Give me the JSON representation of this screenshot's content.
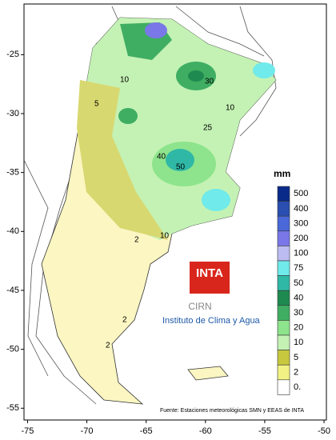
{
  "map": {
    "xticks": [
      -75,
      -70,
      -65,
      -60,
      -55,
      -50
    ],
    "yticks": [
      -25,
      -30,
      -35,
      -40,
      -45,
      -50,
      -55
    ],
    "xlim": [
      -75.3,
      -49.8
    ],
    "ylim": [
      -56,
      -20.7
    ],
    "legend": {
      "title": "mm",
      "items": [
        {
          "label": "500",
          "color": "#0a2a8a"
        },
        {
          "label": "400",
          "color": "#2a4fb0"
        },
        {
          "label": "300",
          "color": "#4a68d8"
        },
        {
          "label": "200",
          "color": "#7a78e8"
        },
        {
          "label": "100",
          "color": "#bcbcf2"
        },
        {
          "label": "75",
          "color": "#70eaea"
        },
        {
          "label": "50",
          "color": "#2fb8a6"
        },
        {
          "label": "40",
          "color": "#1f8a50"
        },
        {
          "label": "30",
          "color": "#3fae62"
        },
        {
          "label": "20",
          "color": "#8ee48c"
        },
        {
          "label": "10",
          "color": "#c4f2b4"
        },
        {
          "label": "5",
          "color": "#c8c83e"
        },
        {
          "label": "2",
          "color": "#f2f284"
        },
        {
          "label": "0.",
          "color": "#ffffff"
        }
      ]
    },
    "contour_labels": [
      "10",
      "30",
      "10",
      "5",
      "40",
      "50",
      "25",
      "2",
      "10",
      "2",
      "2"
    ],
    "logo": {
      "name": "INTA",
      "unit": "CIRN",
      "institute": "Instituto de Clima y Agua"
    },
    "source": "Fuente: Estaciones meteorológicas SMN y EEAS de INTA"
  }
}
